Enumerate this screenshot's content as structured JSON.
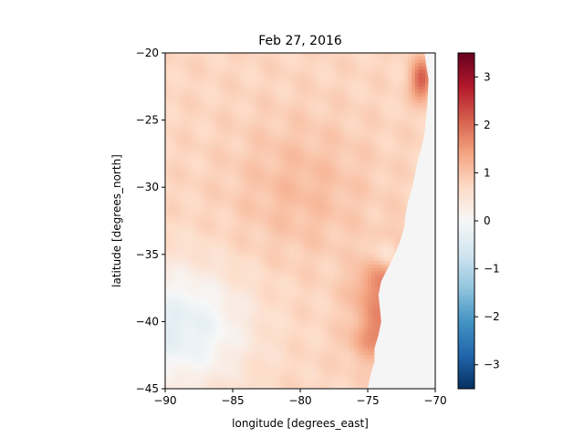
{
  "chart_data": {
    "type": "heatmap",
    "title": "Feb 27, 2016",
    "xlabel": "longitude [degrees_east]",
    "ylabel": "latitude [degrees_north]",
    "xlim": [
      -90,
      -70
    ],
    "ylim": [
      -45,
      -20
    ],
    "x_ticks": [
      -90,
      -85,
      -80,
      -75,
      -70
    ],
    "x_tick_labels": [
      "−90",
      "−85",
      "−80",
      "−75",
      "−70"
    ],
    "y_ticks": [
      -20,
      -25,
      -30,
      -35,
      -40,
      -45
    ],
    "y_tick_labels": [
      "−20",
      "−25",
      "−30",
      "−35",
      "−40",
      "−45"
    ],
    "colorbar": {
      "colormap": "RdBu_r",
      "vmin": -3.5,
      "vmax": 3.5,
      "ticks": [
        3,
        2,
        1,
        0,
        -1,
        -2,
        -3
      ],
      "tick_labels": [
        "3",
        "2",
        "1",
        "0",
        "−1",
        "−2",
        "−3"
      ]
    },
    "grid": false,
    "land_fill_color": "#f5f5f5",
    "coastline_lon_by_lat": [
      [
        -20,
        -70.8
      ],
      [
        -22,
        -70.5
      ],
      [
        -24,
        -70.6
      ],
      [
        -26,
        -70.8
      ],
      [
        -27,
        -71.0
      ],
      [
        -28,
        -71.3
      ],
      [
        -30,
        -71.7
      ],
      [
        -31,
        -72.0
      ],
      [
        -32,
        -72.2
      ],
      [
        -33,
        -72.3
      ],
      [
        -34,
        -72.6
      ],
      [
        -35,
        -73.0
      ],
      [
        -36,
        -73.5
      ],
      [
        -37,
        -74.0
      ],
      [
        -38,
        -74.2
      ],
      [
        -39,
        -74.1
      ],
      [
        -40,
        -74.0
      ],
      [
        -41,
        -74.2
      ],
      [
        -42,
        -74.5
      ],
      [
        -43,
        -74.5
      ],
      [
        -44,
        -74.8
      ],
      [
        -45,
        -75.0
      ]
    ]
  }
}
